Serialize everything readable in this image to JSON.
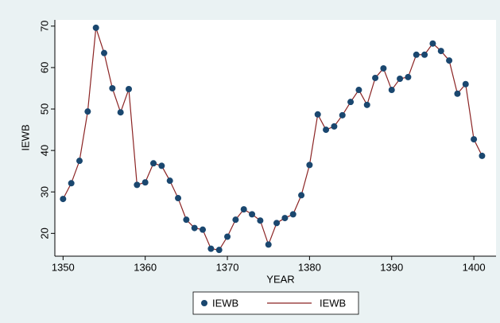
{
  "chart_data": {
    "type": "line",
    "x_label": "YEAR",
    "y_label": "IEWB",
    "x": [
      1350,
      1351,
      1352,
      1353,
      1354,
      1355,
      1356,
      1357,
      1358,
      1359,
      1360,
      1361,
      1362,
      1363,
      1364,
      1365,
      1366,
      1367,
      1368,
      1369,
      1370,
      1371,
      1372,
      1373,
      1374,
      1375,
      1376,
      1377,
      1378,
      1379,
      1380,
      1381,
      1382,
      1383,
      1384,
      1385,
      1386,
      1387,
      1388,
      1389,
      1390,
      1391,
      1392,
      1393,
      1394,
      1395,
      1396,
      1397,
      1398,
      1399,
      1400,
      1401
    ],
    "series": [
      {
        "color": "#8b2323",
        "marker_color": "#1a476f",
        "values": [
          28.3,
          32.1,
          37.5,
          49.4,
          69.6,
          63.5,
          55.0,
          49.2,
          54.8,
          31.7,
          32.3,
          36.9,
          36.3,
          32.7,
          28.5,
          23.3,
          21.3,
          20.9,
          16.3,
          16.0,
          19.2,
          23.3,
          25.8,
          24.6,
          23.1,
          17.3,
          22.5,
          23.7,
          24.6,
          29.2,
          36.5,
          48.7,
          45.0,
          45.8,
          48.5,
          51.7,
          54.6,
          51.0,
          57.5,
          59.8,
          54.6,
          57.3,
          57.7,
          63.1,
          63.1,
          65.8,
          64.0,
          61.7,
          53.7,
          56.0,
          42.7,
          38.7
        ]
      }
    ],
    "legend": [
      {
        "label": "IEWB",
        "symbol": "marker"
      },
      {
        "label": "IEWB",
        "symbol": "line"
      }
    ],
    "xlim": [
      1349,
      1402.7
    ],
    "ylim": [
      14.5,
      71.5
    ],
    "xticks": [
      1350,
      1360,
      1370,
      1380,
      1390,
      1400
    ],
    "yticks": [
      20,
      30,
      40,
      50,
      60,
      70
    ],
    "grid": false
  }
}
